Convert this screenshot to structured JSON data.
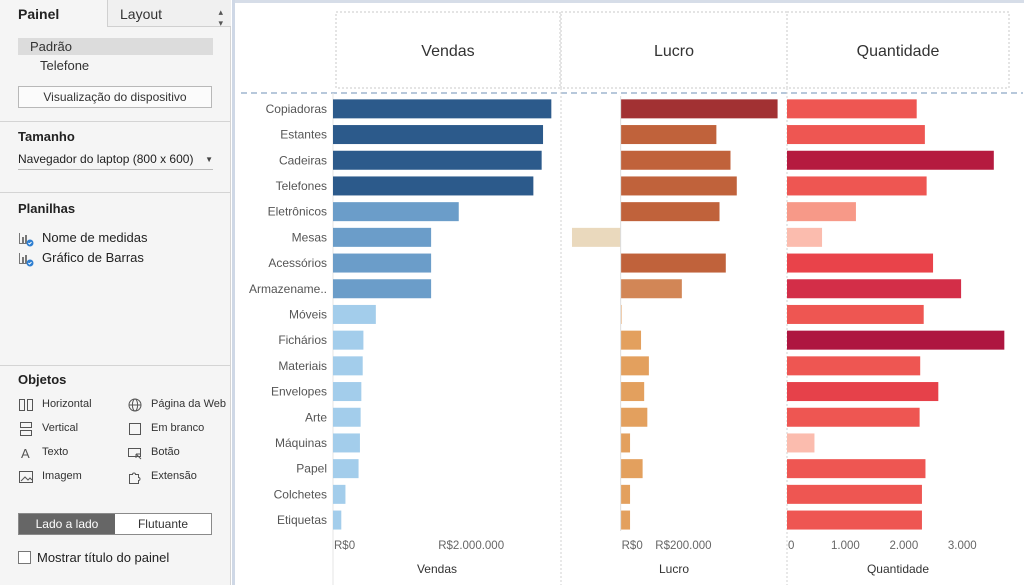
{
  "left_panel": {
    "tabs": {
      "panel": "Painel",
      "layout": "Layout"
    },
    "devices": {
      "default": "Padrão",
      "phone": "Telefone"
    },
    "device_preview_button": "Visualização do dispositivo",
    "size": {
      "title": "Tamanho",
      "selected": "Navegador do laptop (800 x 600)"
    },
    "sheets": {
      "title": "Planilhas",
      "items": [
        "Nome de medidas",
        "Gráfico de Barras"
      ]
    },
    "objects": {
      "title": "Objetos",
      "items": [
        "Horizontal",
        "Página da Web",
        "Vertical",
        "Em branco",
        "Texto",
        "Botão",
        "Imagem",
        "Extensão"
      ]
    },
    "layout_mode": {
      "tiled": "Lado a lado",
      "floating": "Flutuante"
    },
    "show_title": "Mostrar título do painel"
  },
  "chart_data": {
    "type": "bar",
    "orientation": "horizontal",
    "categories": [
      "Copiadoras",
      "Estantes",
      "Cadeiras",
      "Telefones",
      "Eletrônicos",
      "Mesas",
      "Acessórios",
      "Armazename..",
      "Móveis",
      "Fichários",
      "Materiais",
      "Envelopes",
      "Arte",
      "Máquinas",
      "Papel",
      "Colchetes",
      "Etiquetas"
    ],
    "column_headers": [
      "Vendas",
      "Lucro",
      "Quantidade"
    ],
    "series": [
      {
        "name": "Vendas",
        "axis_title": "Vendas",
        "values": [
          3160000,
          3040000,
          3020000,
          2900000,
          1820000,
          1420000,
          1420000,
          1420000,
          620000,
          440000,
          430000,
          410000,
          400000,
          390000,
          370000,
          180000,
          120000
        ],
        "ticks": [
          {
            "value": 0,
            "label": "R$0"
          },
          {
            "value": 2000000,
            "label": "R$2.000.000"
          }
        ],
        "xlim": [
          0,
          3300000
        ],
        "colors": [
          "#2c5a8b",
          "#2c5a8b",
          "#2c5a8b",
          "#2c5a8b",
          "#6b9dc9",
          "#6b9dc9",
          "#6b9dc9",
          "#6b9dc9",
          "#a3cdeb",
          "#a3cdeb",
          "#a3cdeb",
          "#a3cdeb",
          "#a3cdeb",
          "#a3cdeb",
          "#a3cdeb",
          "#a3cdeb",
          "#a3cdeb"
        ]
      },
      {
        "name": "Lucro",
        "axis_title": "Lucro",
        "values": [
          500000,
          305000,
          350000,
          370000,
          315000,
          -155000,
          335000,
          195000,
          3000,
          65000,
          90000,
          75000,
          85000,
          30000,
          70000,
          30000,
          30000
        ],
        "ticks": [
          {
            "value": 0,
            "label": "R$0"
          },
          {
            "value": 200000,
            "label": "R$200.000"
          }
        ],
        "xlim": [
          -190000,
          530000
        ],
        "colors": [
          "#a23133",
          "#c0623b",
          "#c0623b",
          "#c0623b",
          "#c0623b",
          "#ead9bd",
          "#c0623b",
          "#d28656",
          "#e9a767",
          "#e3a05e",
          "#e3a05e",
          "#e3a05e",
          "#e3a05e",
          "#e3a05e",
          "#e3a05e",
          "#e3a05e",
          "#e3a05e"
        ]
      },
      {
        "name": "Quantidade",
        "axis_title": "Quantidade",
        "values": [
          2220,
          2360,
          3540,
          2390,
          1180,
          600,
          2500,
          2980,
          2340,
          3720,
          2280,
          2590,
          2270,
          470,
          2370,
          2310,
          2310
        ],
        "ticks": [
          {
            "value": 0,
            "label": "0"
          },
          {
            "value": 1000,
            "label": "1.000"
          },
          {
            "value": 2000,
            "label": "2.000"
          },
          {
            "value": 3000,
            "label": "3.000"
          }
        ],
        "xlim": [
          0,
          3800
        ],
        "colors": [
          "#ee5652",
          "#ee5652",
          "#b51a3f",
          "#ee5652",
          "#f79988",
          "#fbbcae",
          "#e9434a",
          "#d32e48",
          "#ee5652",
          "#ae1640",
          "#ee5652",
          "#e6414a",
          "#ee5652",
          "#fbbcae",
          "#ee5652",
          "#ee5652",
          "#ee5652"
        ]
      }
    ]
  }
}
